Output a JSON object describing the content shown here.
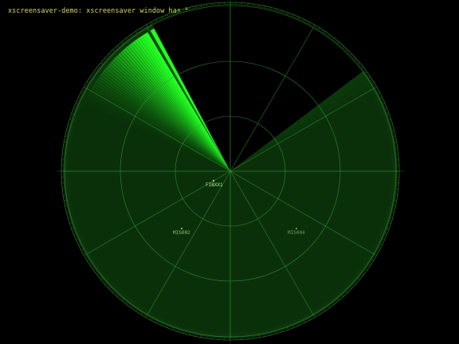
{
  "window": {
    "status_message": "xscreensaver-demo: xscreensaver window has been deleted."
  },
  "radar": {
    "colors": {
      "background": "#000000",
      "scope_fill": "#0a300a",
      "grid": "#3aa03a",
      "sweep": "#22ff22",
      "blip": "#b8e890",
      "message_text": "#d8d860"
    },
    "blips": [
      {
        "label": "FIBXX1",
        "brightness": 1.0
      },
      {
        "label": "MIS002",
        "brightness": 0.75
      },
      {
        "label": "MIS004",
        "brightness": 0.55
      }
    ]
  }
}
